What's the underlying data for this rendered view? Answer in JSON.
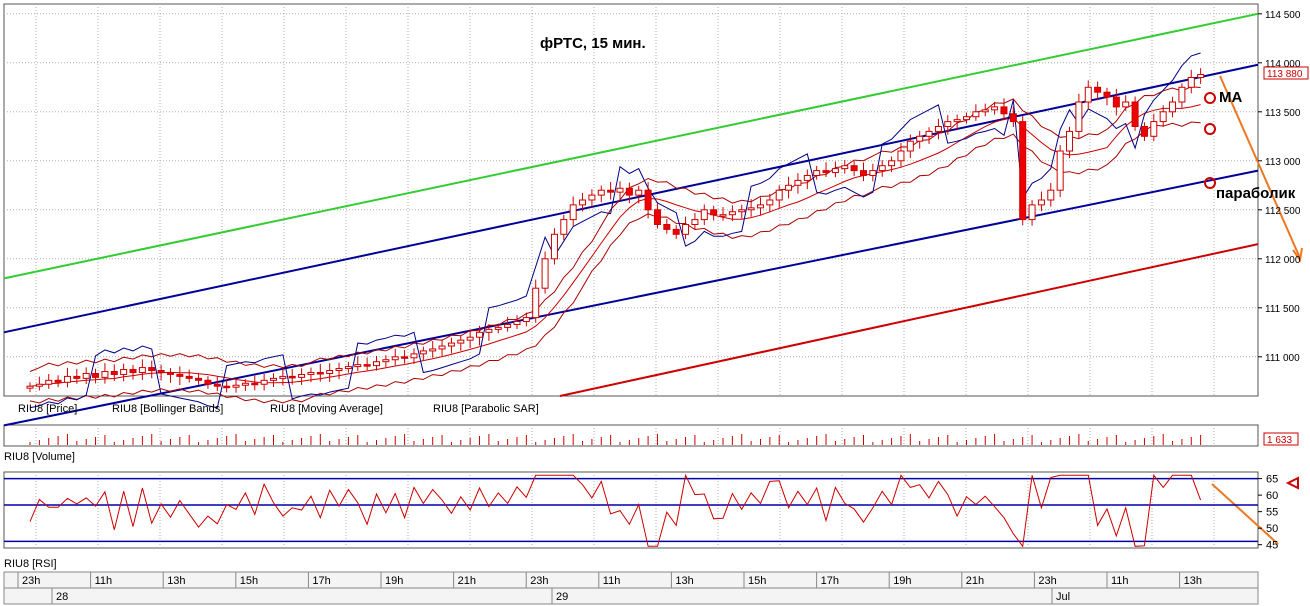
{
  "chart_data": {
    "type": "candlestick",
    "title": "фРТС, 15 мин.",
    "price_panel": {
      "ylim": [
        110600,
        114600
      ],
      "yticks": [
        114500,
        114000,
        113500,
        113000,
        112500,
        112000,
        111500,
        111000
      ],
      "ytick_labels": [
        "114 500",
        "114 000",
        "113 500",
        "113 000",
        "112 500",
        "112 000",
        "111 500",
        "111 000"
      ],
      "last_price_label": "113 880",
      "legend": [
        "RIU8 [Price]",
        "RIU8 [Bollinger Bands]",
        "RIU8 [Moving Average]",
        "RIU8 [Parabolic SAR]"
      ],
      "annotations": [
        "MA",
        "параболик"
      ],
      "channel_upper_green": [
        111800,
        114500
      ],
      "channel_mid_upper_blue": [
        111250,
        113980
      ],
      "channel_mid_lower_blue": [
        110300,
        112900
      ],
      "channel_lower_red": [
        110000,
        112150
      ],
      "candles": [
        110700,
        110720,
        110760,
        110740,
        110800,
        110780,
        110830,
        110790,
        110850,
        110820,
        110870,
        110840,
        110890,
        110860,
        110840,
        110820,
        110800,
        110780,
        110760,
        110720,
        110700,
        110690,
        110710,
        110730,
        110720,
        110760,
        110780,
        110800,
        110790,
        110820,
        110840,
        110830,
        110860,
        110880,
        110900,
        110920,
        110910,
        110950,
        110970,
        111000,
        110990,
        111030,
        111060,
        111080,
        111110,
        111140,
        111170,
        111200,
        111250,
        111280,
        111300,
        111330,
        111360,
        111400,
        111700,
        112000,
        112250,
        112400,
        112550,
        112600,
        112650,
        112700,
        112680,
        112720,
        112650,
        112700,
        112500,
        112350,
        112300,
        112250,
        112350,
        112400,
        112500,
        112450,
        112450,
        112480,
        112500,
        112520,
        112550,
        112600,
        112700,
        112750,
        112800,
        112850,
        112900,
        112880,
        112920,
        112950,
        112900,
        112850,
        112900,
        112950,
        113000,
        113100,
        113200,
        113250,
        113300,
        113350,
        113400,
        113420,
        113450,
        113500,
        113520,
        113550,
        113480,
        113400,
        112400,
        112550,
        112600,
        112700,
        113100,
        113300,
        113600,
        113750,
        113700,
        113650,
        113550,
        113600,
        113350,
        113250,
        113400,
        113500,
        113600,
        113750,
        113850,
        113880
      ]
    },
    "volume_panel": {
      "label": "RIU8 [Volume]",
      "last_value_label": "1 633"
    },
    "rsi_panel": {
      "label": "RIU8 [RSI]",
      "ylim": [
        44,
        67
      ],
      "yticks": [
        65,
        60,
        55,
        50,
        45
      ],
      "levels": [
        65,
        57,
        46
      ]
    },
    "time_axis": {
      "hour_labels": [
        "23h",
        "11h",
        "13h",
        "15h",
        "17h",
        "19h",
        "21h",
        "23h",
        "11h",
        "13h",
        "15h",
        "17h",
        "19h",
        "21h",
        "23h",
        "11h",
        "13h"
      ],
      "day_labels": [
        "28",
        "29",
        "Jul"
      ]
    }
  }
}
